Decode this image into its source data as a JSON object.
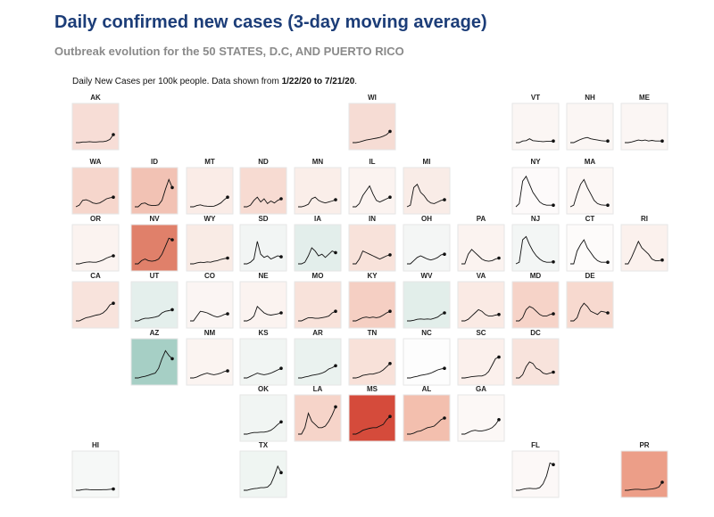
{
  "header": {
    "title": "Daily confirmed new cases (3-day moving average)",
    "subtitle": "Outbreak evolution for the 50 STATES, D.C, AND PUERTO RICO",
    "caption_prefix": "Daily New Cases per 100k people. Data shown from ",
    "caption_dates": "1/22/20 to 7/21/20",
    "caption_suffix": "."
  },
  "chart_data": {
    "type": "small-multiples-line",
    "date_range": [
      "1/22/20",
      "7/21/20"
    ],
    "tiles": [
      {
        "state": "AK",
        "row": 0,
        "col": 1,
        "fill": "#f7ddd6",
        "trend": [
          0,
          0,
          0.02,
          0.02,
          0.03,
          0.02,
          0.02,
          0.03,
          0.03,
          0.05,
          0.1,
          0.25
        ]
      },
      {
        "state": "WI",
        "row": 0,
        "col": 6,
        "fill": "#f6dcd4",
        "trend": [
          0,
          0,
          0.02,
          0.05,
          0.08,
          0.1,
          0.12,
          0.14,
          0.16,
          0.2,
          0.25,
          0.35
        ]
      },
      {
        "state": "VT",
        "row": 0,
        "col": 9,
        "fill": "#fbf6f4",
        "trend": [
          0,
          0,
          0.05,
          0.06,
          0.12,
          0.06,
          0.05,
          0.04,
          0.03,
          0.04,
          0.04,
          0.05
        ]
      },
      {
        "state": "NH",
        "row": 0,
        "col": 10,
        "fill": "#fbf6f4",
        "trend": [
          0,
          0,
          0.05,
          0.1,
          0.14,
          0.16,
          0.12,
          0.1,
          0.08,
          0.06,
          0.05,
          0.05
        ]
      },
      {
        "state": "ME",
        "row": 0,
        "col": 11,
        "fill": "#fbf6f4",
        "trend": [
          0,
          0,
          0.02,
          0.05,
          0.08,
          0.06,
          0.08,
          0.05,
          0.07,
          0.05,
          0.05,
          0.05
        ]
      },
      {
        "state": "WA",
        "row": 1,
        "col": 1,
        "fill": "#f6d6cc",
        "trend": [
          0,
          0.05,
          0.2,
          0.22,
          0.18,
          0.12,
          0.1,
          0.12,
          0.18,
          0.25,
          0.28,
          0.3
        ]
      },
      {
        "state": "ID",
        "row": 1,
        "col": 2,
        "fill": "#f2c2b4",
        "trend": [
          0,
          0,
          0.1,
          0.12,
          0.06,
          0.04,
          0.04,
          0.06,
          0.2,
          0.55,
          0.85,
          0.6
        ]
      },
      {
        "state": "MT",
        "row": 1,
        "col": 3,
        "fill": "#faece7",
        "trend": [
          0,
          0,
          0.04,
          0.06,
          0.03,
          0.02,
          0.01,
          0.02,
          0.06,
          0.12,
          0.22,
          0.3
        ]
      },
      {
        "state": "ND",
        "row": 1,
        "col": 4,
        "fill": "#f7dbd2",
        "trend": [
          0,
          0,
          0.05,
          0.2,
          0.3,
          0.15,
          0.25,
          0.1,
          0.18,
          0.12,
          0.2,
          0.25
        ]
      },
      {
        "state": "MN",
        "row": 1,
        "col": 5,
        "fill": "#faeee9",
        "trend": [
          0,
          0,
          0.03,
          0.08,
          0.25,
          0.3,
          0.2,
          0.15,
          0.12,
          0.15,
          0.18,
          0.22
        ]
      },
      {
        "state": "IL",
        "row": 1,
        "col": 6,
        "fill": "#fbf3f0",
        "trend": [
          0,
          0,
          0.1,
          0.35,
          0.5,
          0.65,
          0.4,
          0.2,
          0.15,
          0.2,
          0.25,
          0.3
        ]
      },
      {
        "state": "MI",
        "row": 1,
        "col": 7,
        "fill": "#f9ece7",
        "trend": [
          0,
          0.05,
          0.6,
          0.7,
          0.45,
          0.35,
          0.2,
          0.12,
          0.1,
          0.15,
          0.2,
          0.22
        ]
      },
      {
        "state": "NY",
        "row": 1,
        "col": 9,
        "fill": "#fdfafa",
        "trend": [
          0,
          0.1,
          0.8,
          0.95,
          0.7,
          0.45,
          0.3,
          0.15,
          0.08,
          0.05,
          0.05,
          0.05
        ]
      },
      {
        "state": "MA",
        "row": 1,
        "col": 10,
        "fill": "#fcf7f5",
        "trend": [
          0,
          0.05,
          0.4,
          0.7,
          0.85,
          0.6,
          0.4,
          0.2,
          0.1,
          0.06,
          0.05,
          0.05
        ]
      },
      {
        "state": "OR",
        "row": 2,
        "col": 1,
        "fill": "#fbf3f0",
        "trend": [
          0,
          0,
          0.03,
          0.05,
          0.06,
          0.05,
          0.05,
          0.08,
          0.12,
          0.18,
          0.22,
          0.25
        ]
      },
      {
        "state": "NV",
        "row": 2,
        "col": 2,
        "fill": "#e0806a",
        "trend": [
          0,
          0,
          0.1,
          0.15,
          0.1,
          0.08,
          0.1,
          0.15,
          0.3,
          0.55,
          0.8,
          0.75
        ]
      },
      {
        "state": "WY",
        "row": 2,
        "col": 3,
        "fill": "#f9ebe5",
        "trend": [
          0,
          0,
          0.03,
          0.05,
          0.04,
          0.06,
          0.05,
          0.08,
          0.1,
          0.14,
          0.16,
          0.18
        ]
      },
      {
        "state": "SD",
        "row": 2,
        "col": 4,
        "fill": "#f2f5f4",
        "trend": [
          0,
          0,
          0.05,
          0.15,
          0.7,
          0.3,
          0.2,
          0.25,
          0.15,
          0.2,
          0.25,
          0.22
        ]
      },
      {
        "state": "IA",
        "row": 2,
        "col": 5,
        "fill": "#e3eeeb",
        "trend": [
          0,
          0,
          0.05,
          0.25,
          0.5,
          0.4,
          0.25,
          0.3,
          0.2,
          0.3,
          0.4,
          0.35
        ]
      },
      {
        "state": "IN",
        "row": 2,
        "col": 6,
        "fill": "#f8e2da",
        "trend": [
          0,
          0,
          0.15,
          0.4,
          0.35,
          0.3,
          0.25,
          0.2,
          0.15,
          0.2,
          0.25,
          0.28
        ]
      },
      {
        "state": "OH",
        "row": 2,
        "col": 7,
        "fill": "#f4f6f5",
        "trend": [
          0,
          0,
          0.1,
          0.2,
          0.25,
          0.2,
          0.15,
          0.12,
          0.15,
          0.2,
          0.28,
          0.3
        ]
      },
      {
        "state": "PA",
        "row": 2,
        "col": 8,
        "fill": "#fbf3f0",
        "trend": [
          0,
          0,
          0.3,
          0.45,
          0.35,
          0.25,
          0.15,
          0.1,
          0.08,
          0.1,
          0.15,
          0.18
        ]
      },
      {
        "state": "NJ",
        "row": 2,
        "col": 9,
        "fill": "#f3f6f5",
        "trend": [
          0,
          0.05,
          0.75,
          0.85,
          0.6,
          0.4,
          0.25,
          0.15,
          0.08,
          0.05,
          0.05,
          0.06
        ]
      },
      {
        "state": "CT",
        "row": 2,
        "col": 10,
        "fill": "#fdfbfa",
        "trend": [
          0,
          0,
          0.4,
          0.6,
          0.75,
          0.5,
          0.35,
          0.2,
          0.1,
          0.05,
          0.05,
          0.05
        ]
      },
      {
        "state": "RI",
        "row": 2,
        "col": 11,
        "fill": "#fbf1ed",
        "trend": [
          0,
          0,
          0.2,
          0.45,
          0.7,
          0.5,
          0.4,
          0.3,
          0.15,
          0.1,
          0.1,
          0.12
        ]
      },
      {
        "state": "CA",
        "row": 3,
        "col": 1,
        "fill": "#f8e3dc",
        "trend": [
          0,
          0,
          0.05,
          0.1,
          0.12,
          0.15,
          0.18,
          0.2,
          0.25,
          0.35,
          0.5,
          0.55
        ]
      },
      {
        "state": "UT",
        "row": 3,
        "col": 2,
        "fill": "#e4efec",
        "trend": [
          0,
          0,
          0.05,
          0.08,
          0.08,
          0.1,
          0.12,
          0.15,
          0.25,
          0.3,
          0.32,
          0.35
        ]
      },
      {
        "state": "CO",
        "row": 3,
        "col": 3,
        "fill": "#fbf5f3",
        "trend": [
          0,
          0,
          0.15,
          0.3,
          0.28,
          0.25,
          0.2,
          0.15,
          0.12,
          0.15,
          0.2,
          0.22
        ]
      },
      {
        "state": "NE",
        "row": 3,
        "col": 4,
        "fill": "#fbf3f0",
        "trend": [
          0,
          0,
          0.05,
          0.15,
          0.45,
          0.35,
          0.25,
          0.2,
          0.18,
          0.2,
          0.22,
          0.25
        ]
      },
      {
        "state": "MO",
        "row": 3,
        "col": 5,
        "fill": "#f8e2da",
        "trend": [
          0,
          0,
          0.05,
          0.1,
          0.1,
          0.08,
          0.08,
          0.1,
          0.12,
          0.15,
          0.25,
          0.3
        ]
      },
      {
        "state": "KY",
        "row": 3,
        "col": 6,
        "fill": "#f5cfc3",
        "trend": [
          0,
          0,
          0.05,
          0.1,
          0.12,
          0.1,
          0.12,
          0.1,
          0.12,
          0.18,
          0.25,
          0.3
        ]
      },
      {
        "state": "WV",
        "row": 3,
        "col": 7,
        "fill": "#e2eeea",
        "trend": [
          0,
          0,
          0.02,
          0.05,
          0.06,
          0.05,
          0.06,
          0.05,
          0.08,
          0.12,
          0.2,
          0.25
        ]
      },
      {
        "state": "VA",
        "row": 3,
        "col": 8,
        "fill": "#faeae4",
        "trend": [
          0,
          0,
          0.05,
          0.15,
          0.25,
          0.35,
          0.3,
          0.2,
          0.15,
          0.15,
          0.18,
          0.2
        ]
      },
      {
        "state": "MD",
        "row": 3,
        "col": 9,
        "fill": "#f6d3c8",
        "trend": [
          0,
          0,
          0.1,
          0.35,
          0.45,
          0.4,
          0.3,
          0.2,
          0.15,
          0.15,
          0.2,
          0.22
        ]
      },
      {
        "state": "DE",
        "row": 3,
        "col": 10,
        "fill": "#f7d9cf",
        "trend": [
          0,
          0,
          0.1,
          0.4,
          0.55,
          0.45,
          0.3,
          0.25,
          0.2,
          0.3,
          0.28,
          0.25
        ]
      },
      {
        "state": "AZ",
        "row": 4,
        "col": 2,
        "fill": "#a6cfc5",
        "trend": [
          0,
          0,
          0.03,
          0.05,
          0.08,
          0.12,
          0.15,
          0.3,
          0.6,
          0.85,
          0.7,
          0.6
        ]
      },
      {
        "state": "NM",
        "row": 4,
        "col": 3,
        "fill": "#fbf4f1",
        "trend": [
          0,
          0,
          0.03,
          0.08,
          0.12,
          0.15,
          0.12,
          0.1,
          0.12,
          0.15,
          0.2,
          0.22
        ]
      },
      {
        "state": "KS",
        "row": 4,
        "col": 4,
        "fill": "#f1f5f3",
        "trend": [
          0,
          0,
          0.05,
          0.1,
          0.15,
          0.12,
          0.1,
          0.12,
          0.15,
          0.2,
          0.25,
          0.3
        ]
      },
      {
        "state": "AR",
        "row": 4,
        "col": 5,
        "fill": "#eaf2ef",
        "trend": [
          0,
          0,
          0.03,
          0.05,
          0.08,
          0.1,
          0.12,
          0.15,
          0.2,
          0.28,
          0.32,
          0.38
        ]
      },
      {
        "state": "TN",
        "row": 4,
        "col": 6,
        "fill": "#f8e1d9",
        "trend": [
          0,
          0,
          0.03,
          0.08,
          0.1,
          0.12,
          0.12,
          0.15,
          0.18,
          0.25,
          0.35,
          0.45
        ]
      },
      {
        "state": "NC",
        "row": 4,
        "col": 7,
        "fill": "#fdfdfd",
        "trend": [
          0,
          0,
          0.03,
          0.05,
          0.08,
          0.1,
          0.12,
          0.15,
          0.2,
          0.25,
          0.28,
          0.3
        ]
      },
      {
        "state": "SC",
        "row": 4,
        "col": 8,
        "fill": "#fbf0ec",
        "trend": [
          0,
          0,
          0.02,
          0.04,
          0.05,
          0.06,
          0.06,
          0.1,
          0.2,
          0.4,
          0.6,
          0.65
        ]
      },
      {
        "state": "DC",
        "row": 4,
        "col": 9,
        "fill": "#f8e3dc",
        "trend": [
          0,
          0,
          0.1,
          0.35,
          0.5,
          0.45,
          0.3,
          0.25,
          0.15,
          0.12,
          0.15,
          0.18
        ]
      },
      {
        "state": "OK",
        "row": 5,
        "col": 4,
        "fill": "#f1f5f3",
        "trend": [
          0,
          0,
          0.03,
          0.05,
          0.05,
          0.06,
          0.06,
          0.08,
          0.12,
          0.2,
          0.3,
          0.38
        ]
      },
      {
        "state": "LA",
        "row": 5,
        "col": 5,
        "fill": "#f6d4c9",
        "trend": [
          0,
          0,
          0.2,
          0.65,
          0.4,
          0.3,
          0.2,
          0.2,
          0.25,
          0.4,
          0.6,
          0.85
        ]
      },
      {
        "state": "MS",
        "row": 5,
        "col": 6,
        "fill": "#d54b3b",
        "trend": [
          0,
          0,
          0.05,
          0.12,
          0.15,
          0.18,
          0.2,
          0.2,
          0.25,
          0.3,
          0.45,
          0.55
        ]
      },
      {
        "state": "AL",
        "row": 5,
        "col": 7,
        "fill": "#f3bfae",
        "trend": [
          0,
          0,
          0.03,
          0.08,
          0.1,
          0.15,
          0.2,
          0.22,
          0.25,
          0.35,
          0.45,
          0.5
        ]
      },
      {
        "state": "GA",
        "row": 5,
        "col": 8,
        "fill": "#fcf8f6",
        "trend": [
          0,
          0,
          0.05,
          0.1,
          0.12,
          0.1,
          0.1,
          0.12,
          0.15,
          0.2,
          0.3,
          0.45
        ]
      },
      {
        "state": "HI",
        "row": 6,
        "col": 1,
        "fill": "#f6f8f7",
        "trend": [
          0,
          0,
          0.02,
          0.03,
          0.02,
          0.01,
          0.01,
          0.01,
          0.02,
          0.02,
          0.03,
          0.04
        ]
      },
      {
        "state": "TX",
        "row": 6,
        "col": 4,
        "fill": "#eff5f2",
        "trend": [
          0,
          0,
          0.03,
          0.05,
          0.06,
          0.08,
          0.08,
          0.1,
          0.2,
          0.45,
          0.75,
          0.55
        ]
      },
      {
        "state": "FL",
        "row": 6,
        "col": 9,
        "fill": "#fcf8f7",
        "trend": [
          0,
          0,
          0.03,
          0.05,
          0.06,
          0.05,
          0.05,
          0.08,
          0.2,
          0.45,
          0.85,
          0.8
        ]
      },
      {
        "state": "PR",
        "row": 6,
        "col": 11,
        "fill": "#ec9e88",
        "trend": [
          0,
          0,
          0.02,
          0.03,
          0.03,
          0.02,
          0.02,
          0.03,
          0.04,
          0.06,
          0.1,
          0.25
        ]
      }
    ]
  }
}
